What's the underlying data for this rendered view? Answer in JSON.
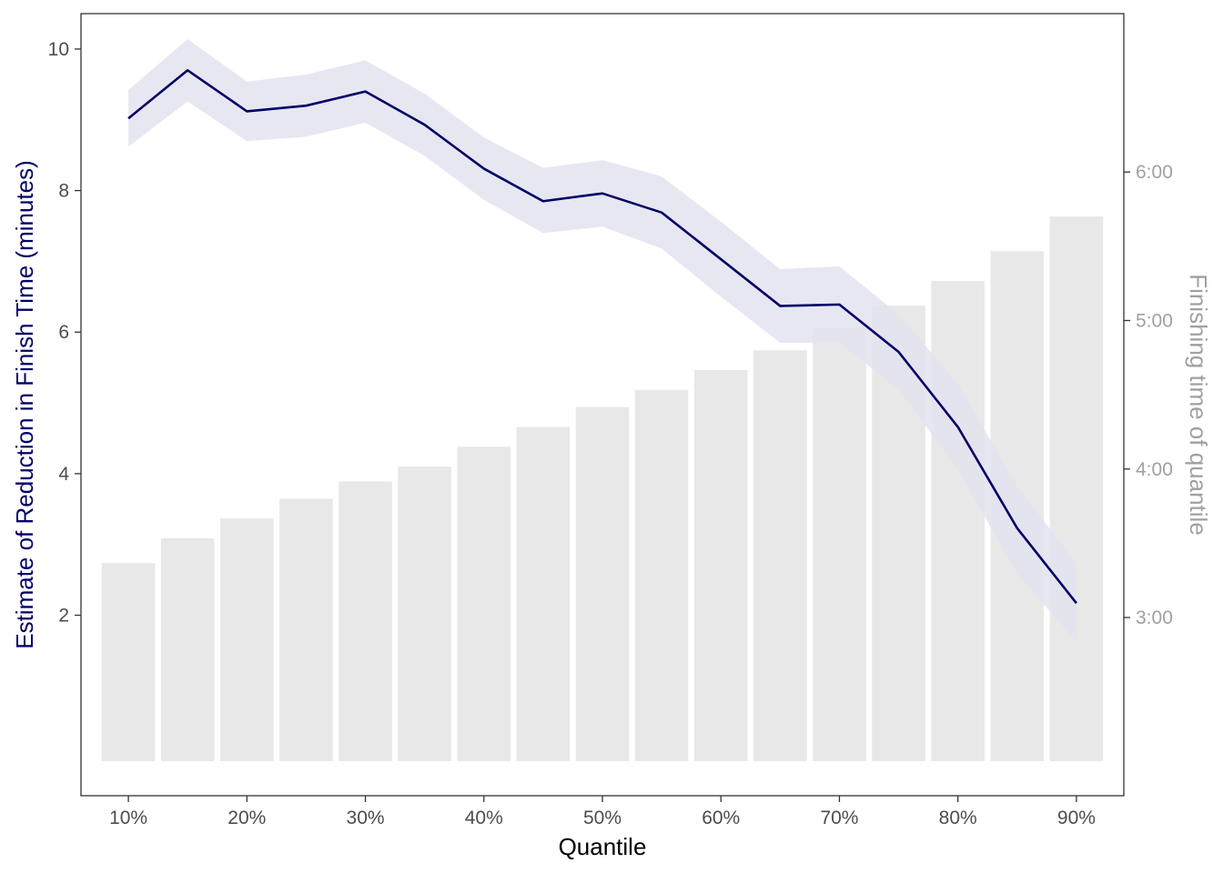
{
  "chart_data": {
    "type": "bar+line",
    "xlabel": "Quantile",
    "ylabel": "Estimate of Reduction in Finish Time (minutes)",
    "ylabel_right": "Finishing time of quantile",
    "x": [
      10,
      15,
      20,
      25,
      30,
      35,
      40,
      45,
      50,
      55,
      60,
      65,
      70,
      75,
      80,
      85,
      90
    ],
    "x_ticks": [
      10,
      20,
      30,
      40,
      50,
      60,
      70,
      80,
      90
    ],
    "x_tick_labels": [
      "10%",
      "20%",
      "30%",
      "40%",
      "50%",
      "60%",
      "70%",
      "80%",
      "90%"
    ],
    "x_range": [
      6,
      94
    ],
    "y_range": [
      -0.55,
      10.5
    ],
    "y_ticks": [
      2,
      4,
      6,
      8,
      10
    ],
    "y_tick_labels": [
      "2",
      "4",
      "6",
      "8",
      "10"
    ],
    "y2_ticks": [
      "3:00",
      "4:00",
      "5:00",
      "6:00"
    ],
    "y2_tick_values_minutes": [
      180,
      240,
      300,
      360
    ],
    "y2_range_minutes": [
      108,
      424
    ],
    "estimate": {
      "name": "Estimate",
      "color": "#000066",
      "values": [
        9.02,
        9.7,
        9.12,
        9.2,
        9.4,
        8.93,
        8.31,
        7.85,
        7.96,
        7.69,
        7.03,
        6.37,
        6.39,
        5.72,
        4.66,
        3.23,
        2.17
      ],
      "lower": [
        8.62,
        9.26,
        8.7,
        8.76,
        8.96,
        8.49,
        7.87,
        7.4,
        7.49,
        7.18,
        6.5,
        5.85,
        5.85,
        5.19,
        4.06,
        2.59,
        1.62
      ],
      "upper": [
        9.42,
        10.14,
        9.54,
        9.64,
        9.84,
        9.37,
        8.75,
        8.32,
        8.43,
        8.2,
        7.56,
        6.89,
        6.93,
        6.25,
        5.27,
        3.82,
        2.73
      ]
    },
    "finishing_time_minutes": [
      202,
      212,
      220,
      228,
      235,
      241,
      249,
      257,
      265,
      272,
      280,
      288,
      297,
      306,
      316,
      328,
      342
    ],
    "colors": {
      "bar": "#e8e8e8",
      "band": "#e3e3f0",
      "line": "#000066",
      "ylabel": "#000066",
      "ylabel_right": "#a0a0a0",
      "xlabel": "#000000",
      "frame": "#333333"
    },
    "grid": false,
    "legend": "none"
  }
}
